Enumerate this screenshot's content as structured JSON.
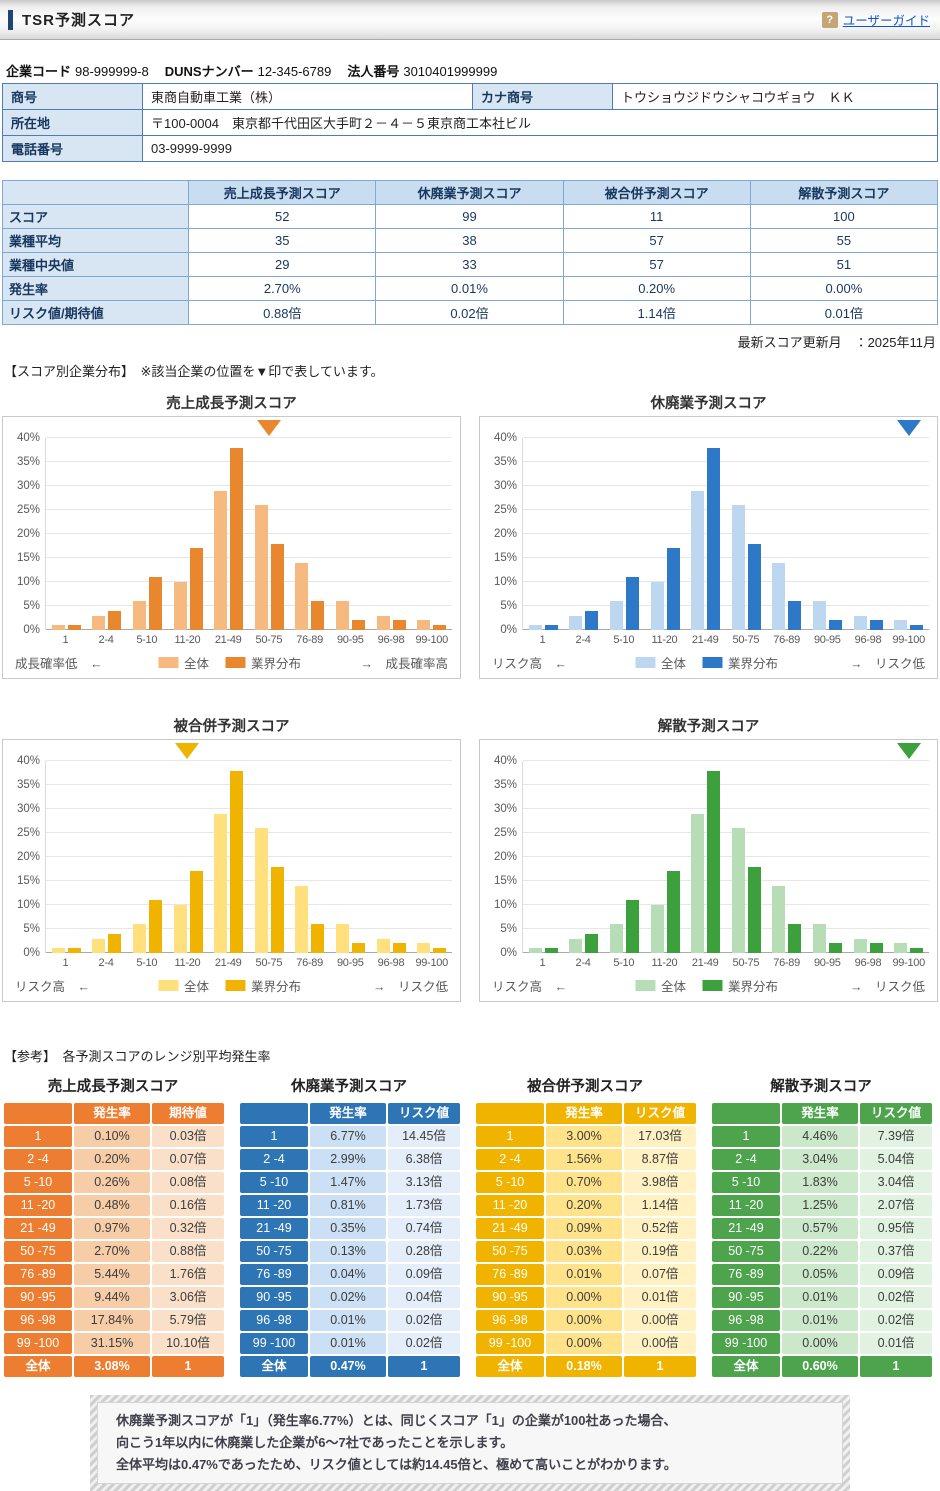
{
  "header": {
    "title": "TSR予測スコア",
    "help_icon": "?",
    "user_guide_label": "ユーザーガイド"
  },
  "company": {
    "code_label": "企業コード",
    "code": "98-999999-8",
    "duns_label": "DUNSナンバー",
    "duns": "12-345-6789",
    "houjin_label": "法人番号",
    "houjin": "3010401999999",
    "shogo_label": "商号",
    "shogo": "東商自動車工業（株）",
    "kana_label": "カナ商号",
    "kana": "トウショウジドウシャコウギョウ　ＫＫ",
    "address_label": "所在地",
    "address": "〒100-0004　東京都千代田区大手町２－４－５東京商工本社ビル",
    "tel_label": "電話番号",
    "tel": "03-9999-9999"
  },
  "score_table": {
    "col_headers": [
      "売上成長予測スコア",
      "休廃業予測スコア",
      "被合併予測スコア",
      "解散予測スコア"
    ],
    "rows": [
      {
        "label": "スコア",
        "values": [
          "52",
          "99",
          "11",
          "100"
        ]
      },
      {
        "label": "業種平均",
        "values": [
          "35",
          "38",
          "57",
          "55"
        ]
      },
      {
        "label": "業種中央値",
        "values": [
          "29",
          "33",
          "57",
          "51"
        ]
      },
      {
        "label": "発生率",
        "values": [
          "2.70%",
          "0.01%",
          "0.20%",
          "0.00%"
        ]
      },
      {
        "label": "リスク値/期待値",
        "values": [
          "0.88倍",
          "0.02倍",
          "1.14倍",
          "0.01倍"
        ]
      }
    ]
  },
  "updated_note": "最新スコア更新月　：2025年11月",
  "distribution_heading": "【スコア別企業分布】　※該当企業の位置を▼印で表しています。",
  "chart_data": [
    {
      "type": "bar",
      "title": "売上成長予測スコア",
      "categories": [
        "1",
        "2-4",
        "5-10",
        "11-20",
        "21-49",
        "50-75",
        "76-89",
        "90-95",
        "96-98",
        "99-100"
      ],
      "series": [
        {
          "name": "全体",
          "values": [
            1,
            3,
            6,
            10,
            29,
            26,
            14,
            6,
            3,
            2
          ]
        },
        {
          "name": "業界分布",
          "values": [
            1,
            4,
            11,
            17,
            38,
            18,
            6,
            2,
            2,
            1
          ]
        }
      ],
      "ylim": [
        0,
        40
      ],
      "ytick_step": 5,
      "grid": true,
      "legend_position": "bottom-center",
      "marker_category": "50-75",
      "left_caption": "成長確率低　←",
      "right_caption": "→　成長確率高",
      "colors": {
        "light": "#F6B97F",
        "dark": "#E8872D"
      }
    },
    {
      "type": "bar",
      "title": "休廃業予測スコア",
      "categories": [
        "1",
        "2-4",
        "5-10",
        "11-20",
        "21-49",
        "50-75",
        "76-89",
        "90-95",
        "96-98",
        "99-100"
      ],
      "series": [
        {
          "name": "全体",
          "values": [
            1,
            3,
            6,
            10,
            29,
            26,
            14,
            6,
            3,
            2
          ]
        },
        {
          "name": "業界分布",
          "values": [
            1,
            4,
            11,
            17,
            38,
            18,
            6,
            2,
            2,
            1
          ]
        }
      ],
      "ylim": [
        0,
        40
      ],
      "ytick_step": 5,
      "grid": true,
      "legend_position": "bottom-center",
      "marker_category": "99-100",
      "left_caption": "リスク高　←",
      "right_caption": "→　リスク低",
      "colors": {
        "light": "#BDD7F0",
        "dark": "#2E79C7"
      }
    },
    {
      "type": "bar",
      "title": "被合併予測スコア",
      "categories": [
        "1",
        "2-4",
        "5-10",
        "11-20",
        "21-49",
        "50-75",
        "76-89",
        "90-95",
        "96-98",
        "99-100"
      ],
      "series": [
        {
          "name": "全体",
          "values": [
            1,
            3,
            6,
            10,
            29,
            26,
            14,
            6,
            3,
            2
          ]
        },
        {
          "name": "業界分布",
          "values": [
            1,
            4,
            11,
            17,
            38,
            18,
            6,
            2,
            2,
            1
          ]
        }
      ],
      "ylim": [
        0,
        40
      ],
      "ytick_step": 5,
      "grid": true,
      "legend_position": "bottom-center",
      "marker_category": "11-20",
      "left_caption": "リスク高　←",
      "right_caption": "→　リスク低",
      "colors": {
        "light": "#FFE07D",
        "dark": "#F0B400"
      }
    },
    {
      "type": "bar",
      "title": "解散予測スコア",
      "categories": [
        "1",
        "2-4",
        "5-10",
        "11-20",
        "21-49",
        "50-75",
        "76-89",
        "90-95",
        "96-98",
        "99-100"
      ],
      "series": [
        {
          "name": "全体",
          "values": [
            1,
            3,
            6,
            10,
            29,
            26,
            14,
            6,
            3,
            2
          ]
        },
        {
          "name": "業界分布",
          "values": [
            1,
            4,
            11,
            17,
            38,
            18,
            6,
            2,
            2,
            1
          ]
        }
      ],
      "ylim": [
        0,
        40
      ],
      "ytick_step": 5,
      "grid": true,
      "legend_position": "bottom-center",
      "marker_category": "99-100",
      "left_caption": "リスク高　←",
      "right_caption": "→　リスク低",
      "colors": {
        "light": "#B6DDB6",
        "dark": "#3CA03C"
      }
    }
  ],
  "reference": {
    "heading": "【参考】　各予測スコアのレンジ別平均発生率",
    "tables": [
      {
        "title": "売上成長予測スコア",
        "value_header": "発生率",
        "ratio_header": "期待値",
        "theme": {
          "solid": "#ED7D31",
          "tint1": "#F7CDA8",
          "tint2": "#FAE0C8"
        },
        "rows": [
          [
            "1",
            "0.10%",
            "0.03倍"
          ],
          [
            "2 -4",
            "0.20%",
            "0.07倍"
          ],
          [
            "5 -10",
            "0.26%",
            "0.08倍"
          ],
          [
            "11 -20",
            "0.48%",
            "0.16倍"
          ],
          [
            "21 -49",
            "0.97%",
            "0.32倍"
          ],
          [
            "50 -75",
            "2.70%",
            "0.88倍"
          ],
          [
            "76 -89",
            "5.44%",
            "1.76倍"
          ],
          [
            "90 -95",
            "9.44%",
            "3.06倍"
          ],
          [
            "96 -98",
            "17.84%",
            "5.79倍"
          ],
          [
            "99 -100",
            "31.15%",
            "10.10倍"
          ]
        ],
        "total": [
          "全体",
          "3.08%",
          "1"
        ]
      },
      {
        "title": "休廃業予測スコア",
        "value_header": "発生率",
        "ratio_header": "リスク値",
        "theme": {
          "solid": "#2E75B6",
          "tint1": "#CCE0F5",
          "tint2": "#E3EEFA"
        },
        "rows": [
          [
            "1",
            "6.77%",
            "14.45倍"
          ],
          [
            "2 -4",
            "2.99%",
            "6.38倍"
          ],
          [
            "5 -10",
            "1.47%",
            "3.13倍"
          ],
          [
            "11 -20",
            "0.81%",
            "1.73倍"
          ],
          [
            "21 -49",
            "0.35%",
            "0.74倍"
          ],
          [
            "50 -75",
            "0.13%",
            "0.28倍"
          ],
          [
            "76 -89",
            "0.04%",
            "0.09倍"
          ],
          [
            "90 -95",
            "0.02%",
            "0.04倍"
          ],
          [
            "96 -98",
            "0.01%",
            "0.02倍"
          ],
          [
            "99 -100",
            "0.01%",
            "0.02倍"
          ]
        ],
        "total": [
          "全体",
          "0.47%",
          "1"
        ]
      },
      {
        "title": "被合併予測スコア",
        "value_header": "発生率",
        "ratio_header": "リスク値",
        "theme": {
          "solid": "#F0B400",
          "tint1": "#FFE38A",
          "tint2": "#FFF1C2"
        },
        "rows": [
          [
            "1",
            "3.00%",
            "17.03倍"
          ],
          [
            "2 -4",
            "1.56%",
            "8.87倍"
          ],
          [
            "5 -10",
            "0.70%",
            "3.98倍"
          ],
          [
            "11 -20",
            "0.20%",
            "1.14倍"
          ],
          [
            "21 -49",
            "0.09%",
            "0.52倍"
          ],
          [
            "50 -75",
            "0.03%",
            "0.19倍"
          ],
          [
            "76 -89",
            "0.01%",
            "0.07倍"
          ],
          [
            "90 -95",
            "0.00%",
            "0.01倍"
          ],
          [
            "96 -98",
            "0.00%",
            "0.00倍"
          ],
          [
            "99 -100",
            "0.00%",
            "0.00倍"
          ]
        ],
        "total": [
          "全体",
          "0.18%",
          "1"
        ]
      },
      {
        "title": "解散予測スコア",
        "value_header": "発生率",
        "ratio_header": "リスク値",
        "theme": {
          "solid": "#4DA44D",
          "tint1": "#CBE8CB",
          "tint2": "#E1F2E1"
        },
        "rows": [
          [
            "1",
            "4.46%",
            "7.39倍"
          ],
          [
            "2 -4",
            "3.04%",
            "5.04倍"
          ],
          [
            "5 -10",
            "1.83%",
            "3.04倍"
          ],
          [
            "11 -20",
            "1.25%",
            "2.07倍"
          ],
          [
            "21 -49",
            "0.57%",
            "0.95倍"
          ],
          [
            "50 -75",
            "0.22%",
            "0.37倍"
          ],
          [
            "76 -89",
            "0.05%",
            "0.09倍"
          ],
          [
            "90 -95",
            "0.01%",
            "0.02倍"
          ],
          [
            "96 -98",
            "0.01%",
            "0.02倍"
          ],
          [
            "99 -100",
            "0.00%",
            "0.01倍"
          ]
        ],
        "total": [
          "全体",
          "0.60%",
          "1"
        ]
      }
    ]
  },
  "footer_note": {
    "lines": [
      "休廃業予測スコアが「1」（発生率6.77%）とは、同じくスコア「1」の企業が100社あった場合、",
      "向こう1年以内に休廃業した企業が6～7社であったことを示します。",
      "全体平均は0.47%であったため、リスク値としては約14.45倍と、極めて高いことがわかります。"
    ]
  }
}
